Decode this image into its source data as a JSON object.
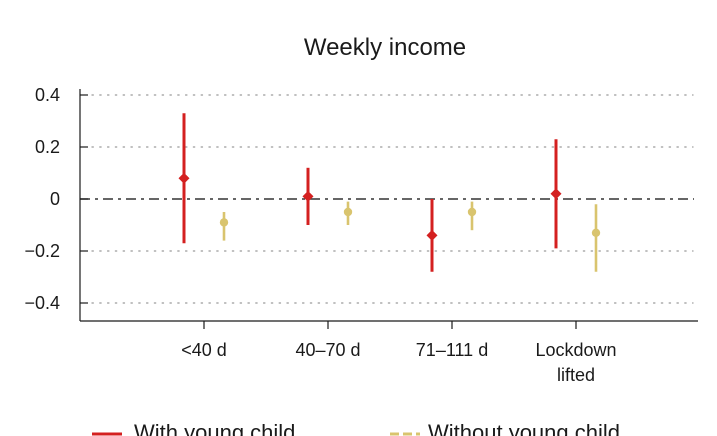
{
  "chart_data": {
    "type": "errorbar",
    "title": "Weekly income",
    "xlabel": "",
    "ylabel": "",
    "ylim": [
      -0.4,
      0.4
    ],
    "yticks": [
      0.4,
      0.2,
      0,
      -0.2,
      -0.4
    ],
    "ytick_labels": [
      "0.4",
      "0.2",
      "0",
      "−0.2",
      "−0.4"
    ],
    "categories": [
      [
        "<40 d"
      ],
      [
        "40–70 d"
      ],
      [
        "71–111 d"
      ],
      [
        "Lockdown",
        "lifted"
      ]
    ],
    "reference_line": 0,
    "grid": "dotted horizontal",
    "legend_position": "bottom",
    "series": [
      {
        "name": "With young child",
        "color": "#d42020",
        "marker": "diamond",
        "points": [
          {
            "estimate": 0.08,
            "lower": -0.17,
            "upper": 0.33
          },
          {
            "estimate": 0.01,
            "lower": -0.1,
            "upper": 0.12
          },
          {
            "estimate": -0.14,
            "lower": -0.28,
            "upper": 0.0
          },
          {
            "estimate": 0.02,
            "lower": -0.19,
            "upper": 0.23
          }
        ]
      },
      {
        "name": "Without young child",
        "color": "#d9c46e",
        "marker": "circle",
        "points": [
          {
            "estimate": -0.09,
            "lower": -0.16,
            "upper": -0.05
          },
          {
            "estimate": -0.05,
            "lower": -0.1,
            "upper": -0.01
          },
          {
            "estimate": -0.05,
            "lower": -0.12,
            "upper": -0.01
          },
          {
            "estimate": -0.13,
            "lower": -0.28,
            "upper": -0.02
          }
        ]
      }
    ]
  }
}
